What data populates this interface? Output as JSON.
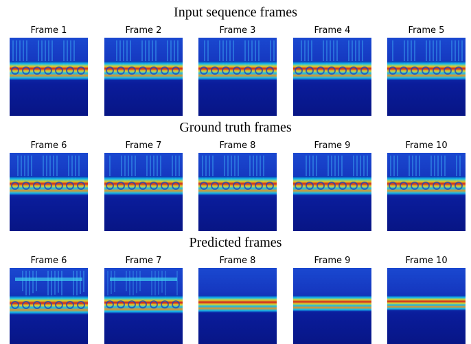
{
  "sections": [
    {
      "title": "Input sequence frames",
      "frames": [
        "Frame 1",
        "Frame 2",
        "Frame 3",
        "Frame 4",
        "Frame 5"
      ]
    },
    {
      "title": "Ground truth frames",
      "frames": [
        "Frame 6",
        "Frame 7",
        "Frame 8",
        "Frame 9",
        "Frame 10"
      ]
    },
    {
      "title": "Predicted frames",
      "frames": [
        "Frame 6",
        "Frame 7",
        "Frame 8",
        "Frame 9",
        "Frame 10"
      ]
    }
  ]
}
